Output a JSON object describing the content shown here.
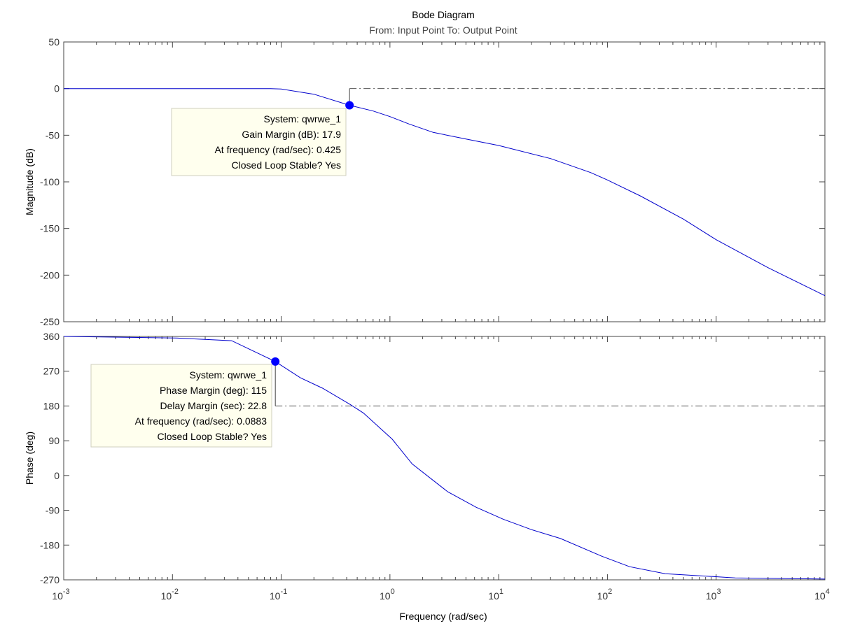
{
  "chart_data": [
    {
      "type": "line",
      "title": "Bode Diagram",
      "subtitle": "From: Input Point  To: Output Point",
      "xlabel": "Frequency  (rad/sec)",
      "ylabel": "Magnitude (dB)",
      "xscale": "log",
      "xlim": [
        0.001,
        10000
      ],
      "ylim": [
        -250,
        50
      ],
      "yticks": [
        "50",
        "0",
        "-50",
        "-100",
        "-150",
        "-200",
        "-250"
      ],
      "ytick_values": [
        50,
        0,
        -50,
        -100,
        -150,
        -200,
        -250
      ],
      "reference_line": 0,
      "line_color": "#0000cc",
      "x": [
        0.001,
        0.01,
        0.08,
        0.1,
        0.2,
        0.425,
        0.7,
        1,
        1.5,
        2.5,
        5,
        10,
        30,
        70,
        100,
        200,
        500,
        1000,
        3000,
        10000
      ],
      "y": [
        0,
        0,
        0,
        -0.5,
        -6,
        -17.9,
        -24,
        -30,
        -38,
        -47,
        -54,
        -61,
        -75,
        -90,
        -98,
        -115,
        -140,
        -162,
        -192,
        -222
      ],
      "marker": {
        "x": 0.425,
        "y": -17.9,
        "color": "#0000ff"
      },
      "datatip": [
        "System: qwrwe_1",
        "Gain Margin (dB): 17.9",
        "At frequency (rad/sec): 0.425",
        "Closed Loop Stable? Yes"
      ]
    },
    {
      "type": "line",
      "xlabel": "Frequency  (rad/sec)",
      "ylabel": "Phase (deg)",
      "xscale": "log",
      "xlim": [
        0.001,
        10000
      ],
      "xticks": [
        "10^-3",
        "10^-2",
        "10^-1",
        "10^0",
        "10^1",
        "10^2",
        "10^3",
        "10^4"
      ],
      "xtick_base": "10",
      "xtick_exponents": [
        "-3",
        "-2",
        "-1",
        "0",
        "1",
        "2",
        "3",
        "4"
      ],
      "ylim": [
        -270,
        360
      ],
      "yticks": [
        "360",
        "270",
        "180",
        "90",
        "0",
        "-90",
        "-180",
        "-270"
      ],
      "ytick_values": [
        360,
        270,
        180,
        90,
        0,
        -90,
        -180,
        -270
      ],
      "reference_line": 180,
      "line_color": "#0000cc",
      "x": [
        0.001,
        0.0106,
        0.035,
        0.0883,
        0.15,
        0.24,
        0.43,
        0.57,
        1.05,
        1.6,
        3.4,
        6.2,
        11,
        20,
        37,
        89,
        160,
        340,
        1500,
        10000
      ],
      "y": [
        360,
        356,
        349,
        295,
        253,
        226,
        184,
        162,
        94,
        30,
        -42,
        -82,
        -113,
        -140,
        -163,
        -209,
        -236,
        -254,
        -265,
        -268
      ],
      "marker": {
        "x": 0.0883,
        "y": 295,
        "color": "#0000ff"
      },
      "datatip": [
        "System: qwrwe_1",
        "Phase Margin (deg): 115",
        "Delay Margin (sec): 22.8",
        "At frequency (rad/sec): 0.0883",
        "Closed Loop Stable? Yes"
      ]
    }
  ]
}
